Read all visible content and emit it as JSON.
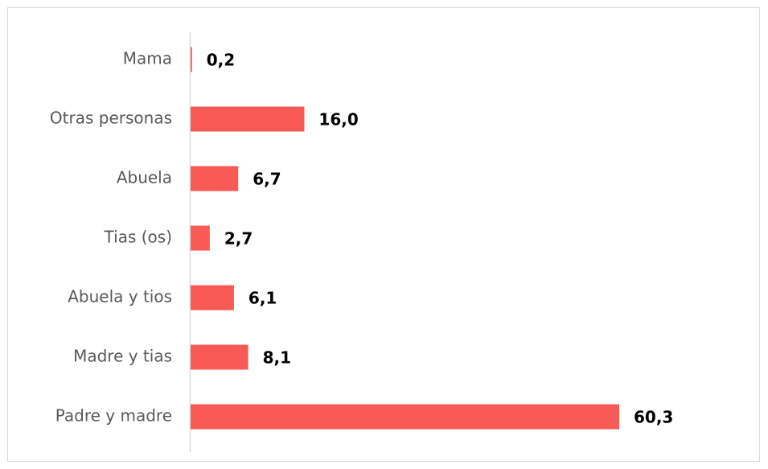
{
  "chart_data": {
    "type": "bar",
    "orientation": "horizontal",
    "categories": [
      "Mama",
      "Otras personas",
      "Abuela",
      "Tias (os)",
      "Abuela y tios",
      "Madre y tias",
      "Padre y madre"
    ],
    "value_labels": [
      "0,2",
      "16,0",
      "6,7",
      "2,7",
      "6,1",
      "8,1",
      "60,3"
    ],
    "values": [
      0.2,
      16.0,
      6.7,
      2.7,
      6.1,
      8.1,
      60.3
    ],
    "xlim": [
      0,
      70
    ],
    "bar_color": "#f85a55",
    "axis_color": "#d9d9d9",
    "grid": false,
    "legend": "none"
  }
}
